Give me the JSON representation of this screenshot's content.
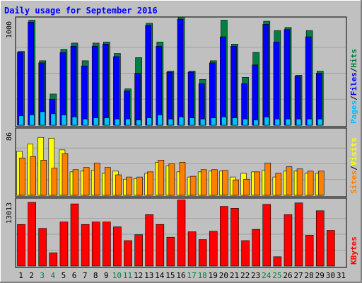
{
  "chart_data": {
    "type": "bar",
    "title": "Daily usage for September 2016",
    "x": [
      "1",
      "2",
      "3",
      "4",
      "5",
      "6",
      "7",
      "8",
      "9",
      "10",
      "11",
      "12",
      "13",
      "14",
      "15",
      "16",
      "17",
      "18",
      "19",
      "20",
      "21",
      "22",
      "23",
      "24",
      "25",
      "26",
      "27",
      "28",
      "29",
      "30",
      "31"
    ],
    "weekend_days": [
      "3",
      "4",
      "10",
      "11",
      "17",
      "18",
      "24",
      "25"
    ],
    "panels": [
      {
        "id": "pages-files-hits",
        "ymax": 1000,
        "ymax_label": "1000",
        "legend": [
          "Pages",
          "/",
          "Files",
          "/",
          "Hits"
        ],
        "legend_colors": [
          "#00c0ff",
          "#000000",
          "#0000ff",
          "#000000",
          "#008040"
        ],
        "series": [
          {
            "name": "Hits",
            "color": "#008040",
            "values": [
              710,
              1010,
              620,
              300,
              730,
              790,
              620,
              790,
              800,
              690,
              350,
              650,
              980,
              800,
              520,
              1040,
              520,
              440,
              620,
              1010,
              780,
              460,
              700,
              1000,
              910,
              940,
              480,
              910,
              520,
              null,
              null
            ]
          },
          {
            "name": "Files",
            "color": "#0000ff",
            "values": [
              700,
              990,
              600,
              250,
              700,
              760,
              570,
              760,
              780,
              660,
              330,
              500,
              960,
              760,
              510,
              1020,
              510,
              400,
              600,
              850,
              760,
              400,
              580,
              970,
              800,
              920,
              470,
              850,
              500,
              null,
              null
            ]
          },
          {
            "name": "Pages",
            "color": "#00c0ff",
            "values": [
              90,
              100,
              130,
              110,
              100,
              80,
              60,
              70,
              70,
              60,
              60,
              50,
              70,
              100,
              60,
              80,
              70,
              60,
              70,
              80,
              70,
              60,
              50,
              80,
              60,
              60,
              60,
              60,
              60,
              null,
              null
            ]
          }
        ]
      },
      {
        "id": "sites-visits",
        "ymax": 86,
        "ymax_label": "86",
        "legend": [
          "Sites",
          "/",
          "Visits"
        ],
        "legend_colors": [
          "#ff8000",
          "#000000",
          "#ffff00"
        ],
        "series": [
          {
            "name": "Visits",
            "color": "#ffff00",
            "values": [
              60,
              70,
              79,
              78,
              62,
              32,
              33,
              34,
              30,
              33,
              22,
              23,
              30,
              45,
              40,
              32,
              25,
              32,
              33,
              33,
              25,
              30,
              32,
              34,
              25,
              33,
              33,
              30,
              30,
              null,
              null
            ]
          },
          {
            "name": "Sites",
            "color": "#ff8000",
            "values": [
              51,
              53,
              48,
              37,
              57,
              35,
              38,
              44,
              38,
              28,
              25,
              25,
              32,
              48,
              43,
              45,
              26,
              35,
              35,
              34,
              21,
              22,
              32,
              44,
              30,
              39,
              36,
              33,
              33,
              null,
              null
            ]
          }
        ]
      },
      {
        "id": "kbytes",
        "ymax": 13013,
        "ymax_label": "13013",
        "legend": [
          "KBytes"
        ],
        "legend_colors": [
          "#ff0000"
        ],
        "series": [
          {
            "name": "KBytes",
            "color": "#ff0000",
            "values": [
              8500,
              13000,
              7700,
              2700,
              9000,
              12700,
              8500,
              9000,
              9000,
              8000,
              5200,
              6400,
              10500,
              8500,
              5900,
              13500,
              7000,
              5400,
              7100,
              12200,
              11800,
              5200,
              7500,
              12600,
              1900,
              10500,
              12900,
              6300,
              11300,
              7300,
              null
            ]
          }
        ]
      }
    ],
    "grid": true,
    "colors": {
      "background": "#c0c0c0",
      "frame": "#000000",
      "title": "#0000ff",
      "axis_label": "#000000",
      "weekend_label": "#008040"
    }
  }
}
